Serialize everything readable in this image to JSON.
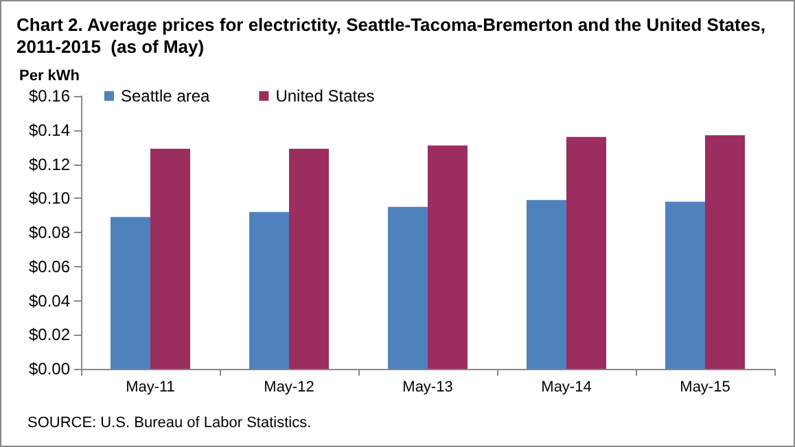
{
  "chart_data": {
    "type": "bar",
    "title": "Chart 2. Average prices for electrictity, Seattle-Tacoma-Bremerton and the United States, 2011-2015  (as of May)",
    "ylabel": "Per kWh",
    "annotations": [
      "SOURCE: U.S. Bureau of Labor Statistics."
    ],
    "categories": [
      "May-11",
      "May-12",
      "May-13",
      "May-14",
      "May-15"
    ],
    "series": [
      {
        "name": "Seattle area",
        "color": "#4f81bd",
        "values": [
          0.089,
          0.092,
          0.095,
          0.099,
          0.098
        ]
      },
      {
        "name": "United States",
        "color": "#9b2d5f",
        "values": [
          0.129,
          0.129,
          0.131,
          0.136,
          0.137
        ]
      }
    ],
    "ylim": [
      0,
      0.16
    ],
    "yticks": [
      {
        "value": 0,
        "label": "$0.00"
      },
      {
        "value": 0.02,
        "label": "$0.02"
      },
      {
        "value": 0.04,
        "label": "$0.04"
      },
      {
        "value": 0.06,
        "label": "$0.06"
      },
      {
        "value": 0.08,
        "label": "$0.08"
      },
      {
        "value": 0.1,
        "label": "$0.10"
      },
      {
        "value": 0.12,
        "label": "$0.12"
      },
      {
        "value": 0.14,
        "label": "$0.14"
      },
      {
        "value": 0.16,
        "label": "$0.16"
      }
    ],
    "grid": false,
    "legend": "top left"
  }
}
